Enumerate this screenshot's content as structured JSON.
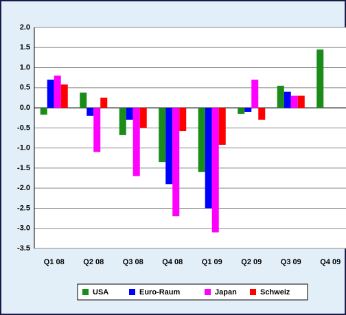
{
  "chart_data": {
    "type": "bar",
    "categories": [
      "Q1 08",
      "Q2 08",
      "Q3 08",
      "Q4 08",
      "Q1 09",
      "Q2 09",
      "Q3 09",
      "Q4 09"
    ],
    "series": [
      {
        "name": "USA",
        "color": "#1a8c1a",
        "values": [
          -0.17,
          0.38,
          -0.68,
          -1.35,
          -1.6,
          -0.15,
          0.55,
          1.45
        ]
      },
      {
        "name": "Euro-Raum",
        "color": "#0000ff",
        "values": [
          0.7,
          -0.2,
          -0.3,
          -1.9,
          -2.5,
          -0.1,
          0.4,
          null
        ]
      },
      {
        "name": "Japan",
        "color": "#ff00ff",
        "values": [
          0.8,
          -1.1,
          -1.7,
          -2.7,
          -3.1,
          0.7,
          0.3,
          null
        ]
      },
      {
        "name": "Schweiz",
        "color": "#ff0000",
        "values": [
          0.58,
          0.25,
          -0.5,
          -0.58,
          -0.92,
          -0.3,
          0.3,
          null
        ]
      }
    ],
    "ylim": [
      -3.5,
      2.0
    ],
    "yticks": [
      {
        "value": -3.5,
        "label": "-3.5"
      },
      {
        "value": -3,
        "label": "-3.0"
      },
      -2.5,
      {
        "value": -2,
        "label": "-2.0"
      },
      -1.5,
      {
        "value": -1,
        "label": "-1.0"
      },
      -0.5,
      {
        "value": 0,
        "label": "0.0"
      },
      0.5,
      {
        "value": 1,
        "label": "1.0"
      },
      1.5,
      {
        "value": 2,
        "label": "2.0"
      }
    ],
    "grid": true,
    "legend": "bottom"
  }
}
